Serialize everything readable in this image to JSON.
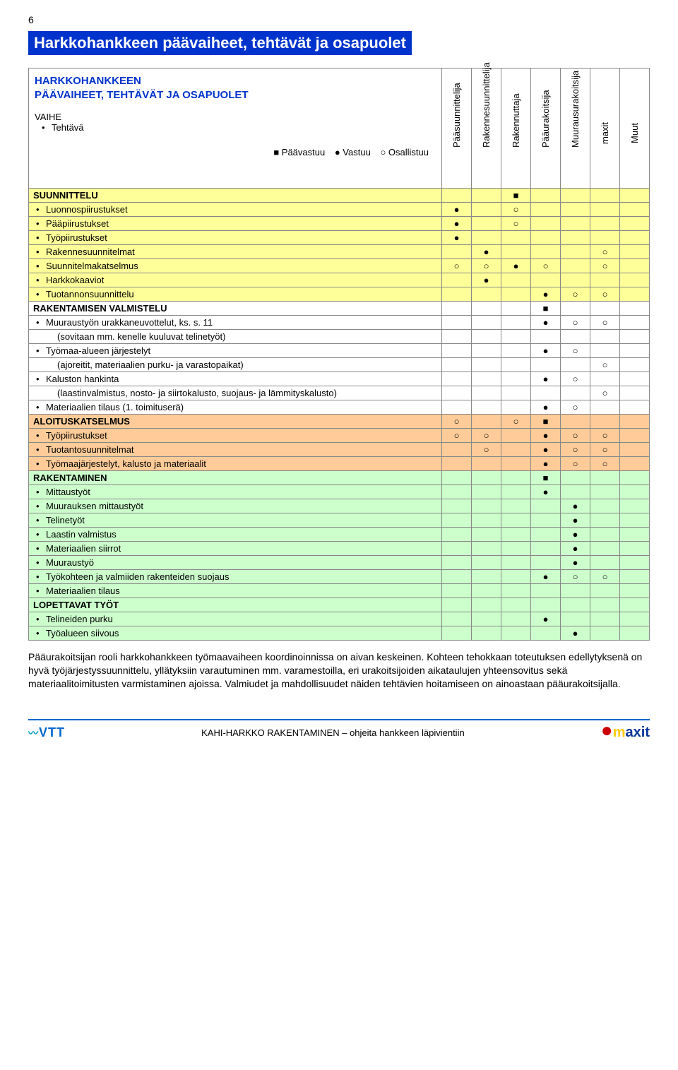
{
  "page_number": "6",
  "title": "Harkkohankkeen päävaiheet, tehtävät ja osapuolet",
  "header_box": {
    "line1": "HARKKOHANKKEEN",
    "line2": "PÄÄVAIHEET, TEHTÄVÄT JA OSAPUOLET",
    "vaihe": "VAIHE",
    "tehtava": "Tehtävä",
    "legend_main": "■ Päävastuu",
    "legend_resp": "● Vastuu",
    "legend_part": "○ Osallistuu"
  },
  "columns": [
    "Pääsuunnittelija",
    "Rakennesuunnittelija",
    "Rakennuttaja",
    "Pääurakoitsija",
    "Muurausurakoitsija",
    "maxit",
    "Muut"
  ],
  "colors": {
    "yellow": "#ffff99",
    "white": "#ffffff",
    "orange": "#ffcc99",
    "green": "#ccffcc",
    "header_bg": "#0033cc",
    "header_fg": "#ffffff",
    "accent_blue": "#0033cc"
  },
  "sections": [
    {
      "title": "SUUNNITTELU",
      "bg": "bg-yellow",
      "marks": [
        "",
        "",
        "■",
        "",
        "",
        "",
        ""
      ],
      "rows": [
        {
          "label": "Luonnospiirustukset",
          "marks": [
            "●",
            "",
            "○",
            "",
            "",
            "",
            ""
          ]
        },
        {
          "label": "Pääpiirustukset",
          "marks": [
            "●",
            "",
            "○",
            "",
            "",
            "",
            ""
          ]
        },
        {
          "label": "Työpiirustukset",
          "marks": [
            "●",
            "",
            "",
            "",
            "",
            "",
            ""
          ]
        },
        {
          "label": "Rakennesuunnitelmat",
          "marks": [
            "",
            "●",
            "",
            "",
            "",
            "○",
            ""
          ]
        },
        {
          "label": "Suunnitelmakatselmus",
          "marks": [
            "○",
            "○",
            "●",
            "○",
            "",
            "○",
            ""
          ]
        },
        {
          "label": "Harkkokaaviot",
          "marks": [
            "",
            "●",
            "",
            "",
            "",
            "",
            ""
          ]
        },
        {
          "label": "Tuotannonsuunnittelu",
          "marks": [
            "",
            "",
            "",
            "●",
            "○",
            "○",
            ""
          ]
        }
      ]
    },
    {
      "title": "RAKENTAMISEN VALMISTELU",
      "bg": "bg-white",
      "marks": [
        "",
        "",
        "",
        "■",
        "",
        "",
        ""
      ],
      "rows": [
        {
          "label": "Muuraustyön urakkaneuvottelut, ks. s. 11",
          "sub": "(sovitaan mm. kenelle kuuluvat telinetyöt)",
          "marks": [
            "",
            "",
            "",
            "●",
            "○",
            "○",
            ""
          ]
        },
        {
          "label": "Työmaa-alueen järjestelyt",
          "sub": "(ajoreitit, materiaalien purku- ja varastopaikat)",
          "marks": [
            "",
            "",
            "",
            "●",
            "○",
            "",
            ""
          ],
          "marks2": [
            "",
            "",
            "",
            "",
            "",
            "○",
            ""
          ]
        },
        {
          "label": "Kaluston hankinta",
          "sub": "(laastinvalmistus, nosto- ja siirtokalusto, suojaus- ja lämmityskalusto)",
          "marks": [
            "",
            "",
            "",
            "●",
            "○",
            "",
            ""
          ],
          "marks2": [
            "",
            "",
            "",
            "",
            "",
            "○",
            ""
          ]
        },
        {
          "label": "Materiaalien tilaus (1. toimituserä)",
          "marks": [
            "",
            "",
            "",
            "●",
            "○",
            "",
            ""
          ]
        }
      ]
    },
    {
      "title": "ALOITUSKATSELMUS",
      "bg": "bg-orange",
      "marks": [
        "○",
        "",
        "○",
        "■",
        "",
        "",
        ""
      ],
      "rows": [
        {
          "label": "Työpiirustukset",
          "marks": [
            "○",
            "○",
            "",
            "●",
            "○",
            "○",
            ""
          ]
        },
        {
          "label": "Tuotantosuunnitelmat",
          "marks": [
            "",
            "○",
            "",
            "●",
            "○",
            "○",
            ""
          ]
        },
        {
          "label": "Työmaajärjestelyt, kalusto ja materiaalit",
          "marks": [
            "",
            "",
            "",
            "●",
            "○",
            "○",
            ""
          ]
        }
      ]
    },
    {
      "title": "RAKENTAMINEN",
      "bg": "bg-green",
      "marks": [
        "",
        "",
        "",
        "■",
        "",
        "",
        ""
      ],
      "rows": [
        {
          "label": "Mittaustyöt",
          "marks": [
            "",
            "",
            "",
            "●",
            "",
            "",
            ""
          ]
        },
        {
          "label": "Muurauksen mittaustyöt",
          "marks": [
            "",
            "",
            "",
            "",
            "●",
            "",
            ""
          ]
        },
        {
          "label": "Telinetyöt",
          "marks": [
            "",
            "",
            "",
            "",
            "●",
            "",
            ""
          ]
        },
        {
          "label": "Laastin valmistus",
          "marks": [
            "",
            "",
            "",
            "",
            "●",
            "",
            ""
          ]
        },
        {
          "label": "Materiaalien siirrot",
          "marks": [
            "",
            "",
            "",
            "",
            "●",
            "",
            ""
          ]
        },
        {
          "label": "Muuraustyö",
          "marks": [
            "",
            "",
            "",
            "",
            "●",
            "",
            ""
          ]
        },
        {
          "label": "Työkohteen ja valmiiden rakenteiden suojaus",
          "marks": [
            "",
            "",
            "",
            "●",
            "○",
            "○",
            ""
          ]
        },
        {
          "label": "Materiaalien tilaus",
          "marks": [
            "",
            "",
            "",
            "",
            "",
            "",
            ""
          ]
        }
      ]
    },
    {
      "title": "LOPETTAVAT TYÖT",
      "bg": "bg-green",
      "marks": [
        "",
        "",
        "",
        "",
        "",
        "",
        ""
      ],
      "rows": [
        {
          "label": "Telineiden purku",
          "marks": [
            "",
            "",
            "",
            "●",
            "",
            "",
            ""
          ]
        },
        {
          "label": "Työalueen siivous",
          "marks": [
            "",
            "",
            "",
            "",
            "●",
            "",
            ""
          ]
        }
      ]
    }
  ],
  "paragraph": "Pääurakoitsijan rooli harkkohankkeen työmaavaiheen koordinoinnissa on aivan keskeinen. Kohteen tehokkaan toteutuksen edellytyksenä on hyvä työjärjestyssuunnittelu, yllätyksiin varautuminen mm. varamestoilla, eri urakoitsijoiden aikataulujen yhteensovitus sekä materiaalitoimitusten varmistaminen ajoissa. Valmiudet ja mahdollisuudet näiden tehtävien hoitamiseen on ainoastaan pääurakoitsijalla.",
  "footer": {
    "vtt": "VTT",
    "center": "KAHI-HARKKO RAKENTAMINEN – ohjeita hankkeen läpivientiin",
    "maxit": "maxit"
  }
}
